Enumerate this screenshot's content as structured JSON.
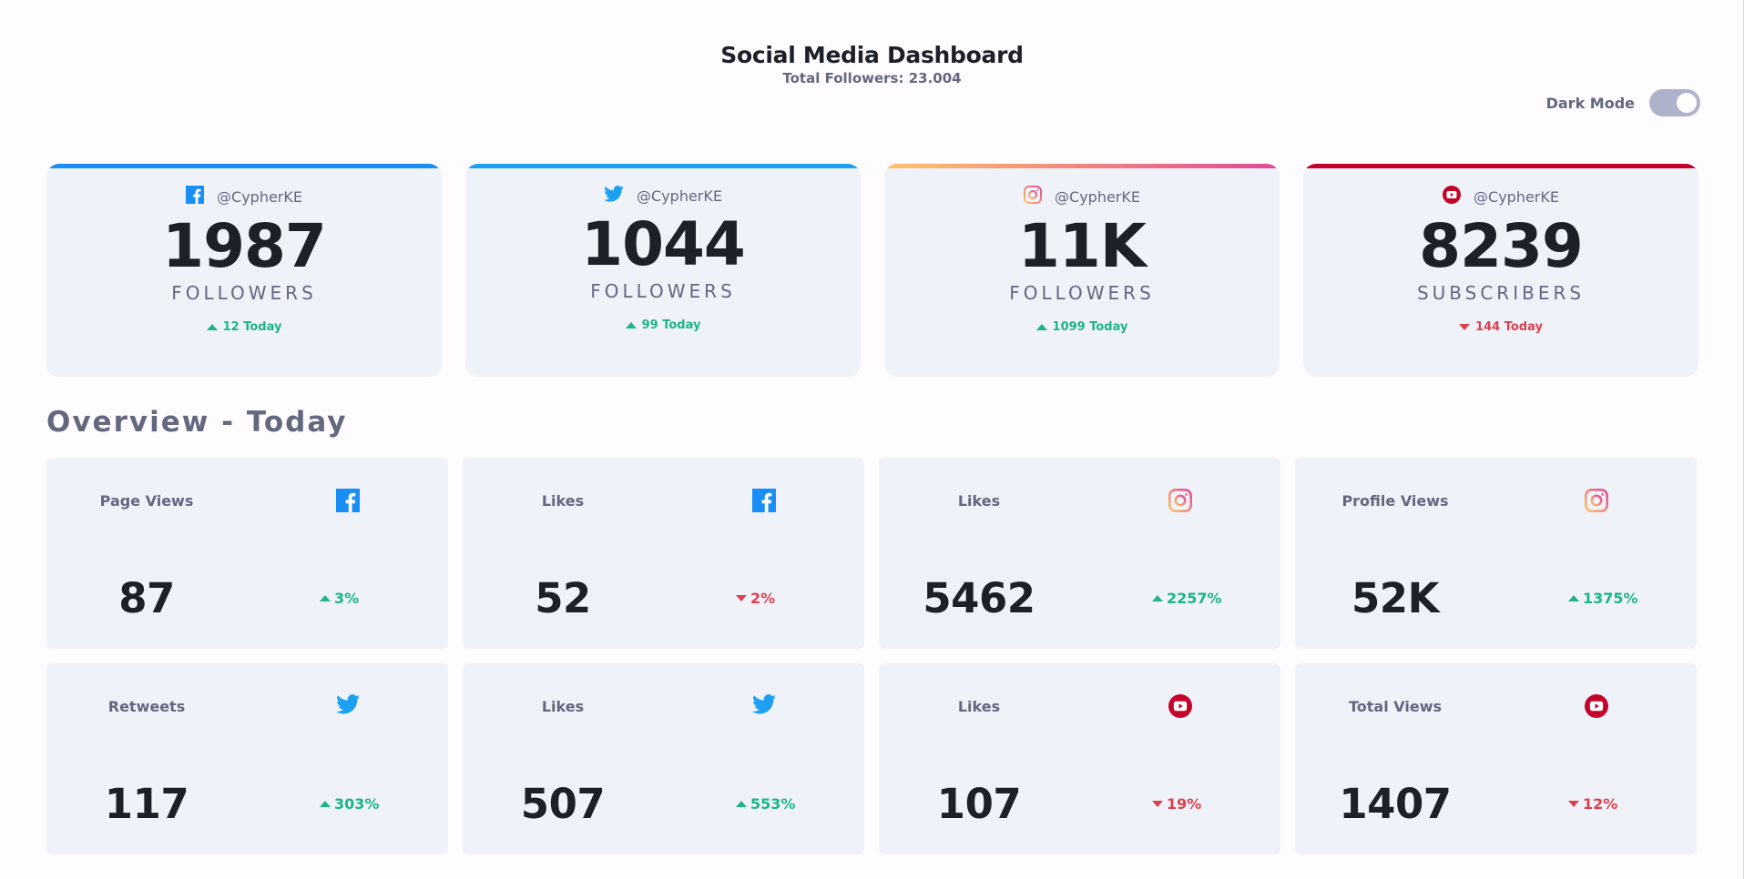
{
  "header": {
    "title": "Social Media Dashboard",
    "subtitle": "Total Followers: 23.004",
    "toggle_label": "Dark Mode"
  },
  "colors": {
    "facebook": "#198ff5",
    "twitter": "#1ca0f2",
    "instagram_start": "#fdc468",
    "instagram_end": "#df4996",
    "youtube": "#c4032a",
    "up": "#1db489",
    "down": "#dc414c"
  },
  "top_cards": [
    {
      "platform": "facebook",
      "icon": "facebook-icon",
      "handle": "@CypherKE",
      "count": "1987",
      "unit": "FOLLOWERS",
      "today": "12 Today",
      "trend": "up"
    },
    {
      "platform": "twitter",
      "icon": "twitter-icon",
      "handle": "@CypherKE",
      "count": "1044",
      "unit": "FOLLOWERS",
      "today": "99 Today",
      "trend": "up"
    },
    {
      "platform": "instagram",
      "icon": "instagram-icon",
      "handle": "@CypherKE",
      "count": "11K",
      "unit": "FOLLOWERS",
      "today": "1099 Today",
      "trend": "up"
    },
    {
      "platform": "youtube",
      "icon": "youtube-icon",
      "handle": "@CypherKE",
      "count": "8239",
      "unit": "SUBSCRIBERS",
      "today": "144 Today",
      "trend": "down"
    }
  ],
  "overview": {
    "title": "Overview - Today",
    "cards": [
      {
        "label": "Page Views",
        "platform": "facebook",
        "icon": "facebook-icon",
        "value": "87",
        "percent": "3%",
        "trend": "up"
      },
      {
        "label": "Likes",
        "platform": "facebook",
        "icon": "facebook-icon",
        "value": "52",
        "percent": "2%",
        "trend": "down"
      },
      {
        "label": "Likes",
        "platform": "instagram",
        "icon": "instagram-icon",
        "value": "5462",
        "percent": "2257%",
        "trend": "up"
      },
      {
        "label": "Profile Views",
        "platform": "instagram",
        "icon": "instagram-icon",
        "value": "52K",
        "percent": "1375%",
        "trend": "up"
      },
      {
        "label": "Retweets",
        "platform": "twitter",
        "icon": "twitter-icon",
        "value": "117",
        "percent": "303%",
        "trend": "up"
      },
      {
        "label": "Likes",
        "platform": "twitter",
        "icon": "twitter-icon",
        "value": "507",
        "percent": "553%",
        "trend": "up"
      },
      {
        "label": "Likes",
        "platform": "youtube",
        "icon": "youtube-icon",
        "value": "107",
        "percent": "19%",
        "trend": "down"
      },
      {
        "label": "Total Views",
        "platform": "youtube",
        "icon": "youtube-icon",
        "value": "1407",
        "percent": "12%",
        "trend": "down"
      }
    ]
  }
}
